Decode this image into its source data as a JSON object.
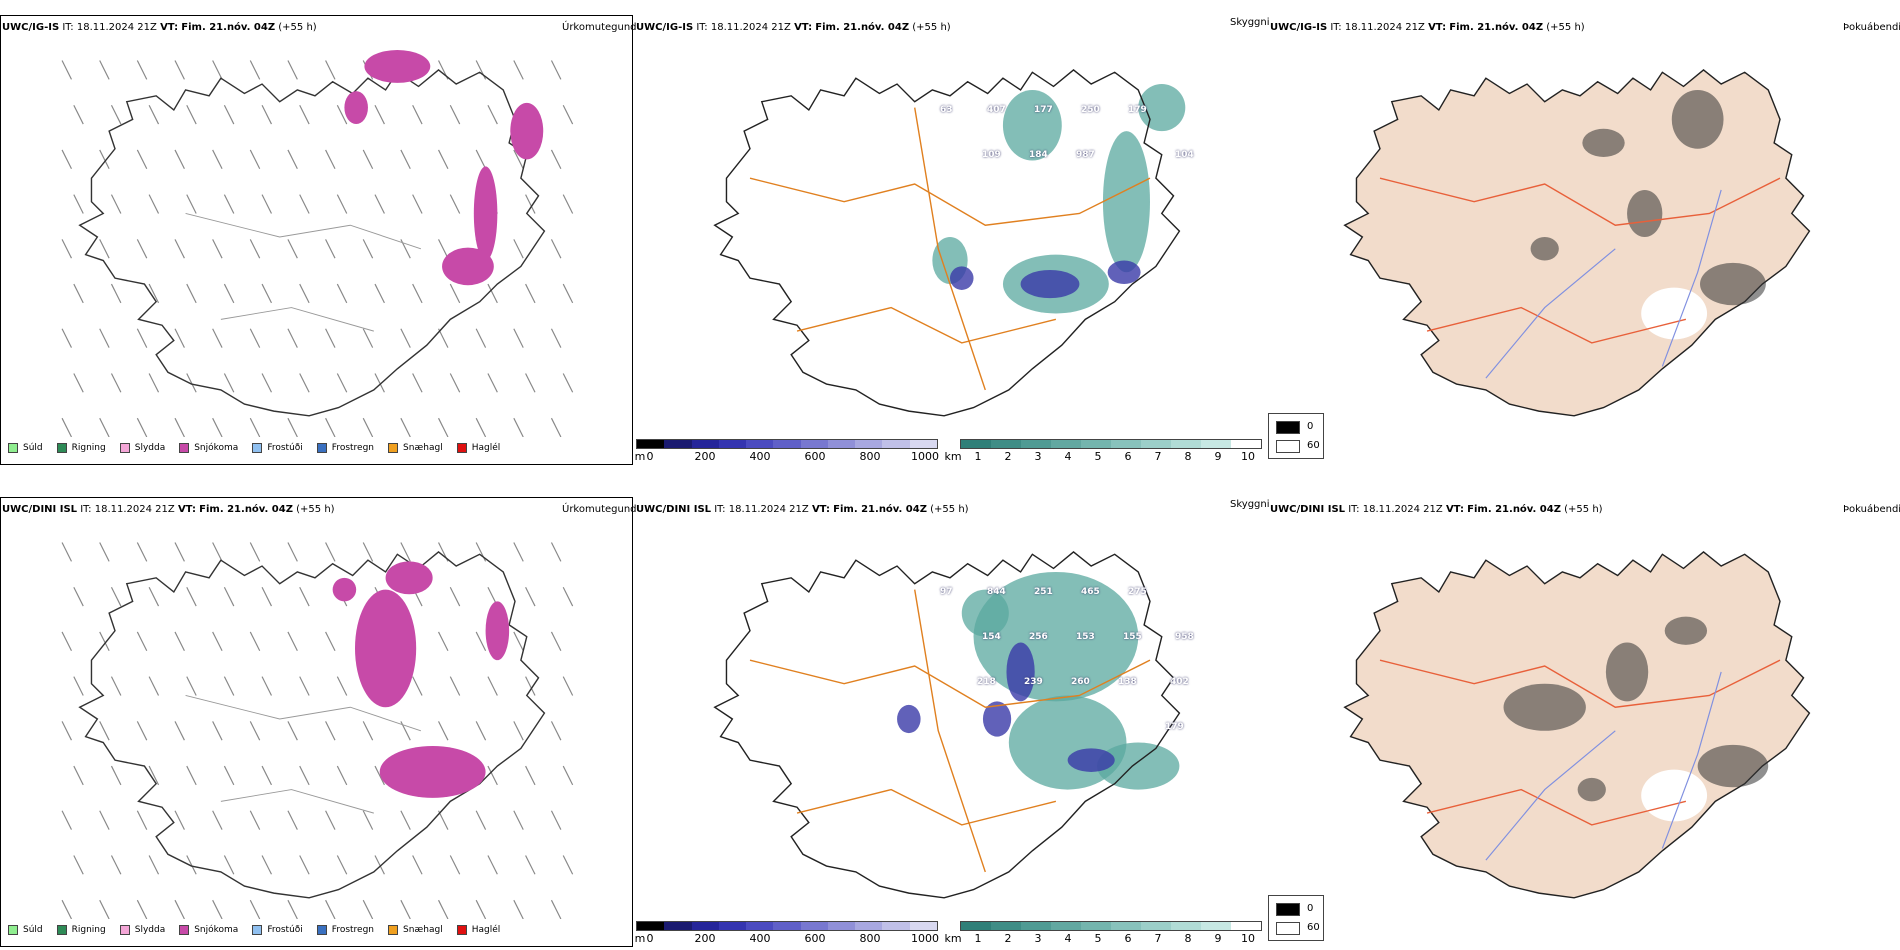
{
  "rows": [
    {
      "model": "UWC/IG-IS",
      "it_label": "IT:",
      "it_value": "18.11.2024 21Z",
      "vt_label": "VT:",
      "vt_value": "Fim. 21.nóv. 04Z",
      "lead": "(+55 h)",
      "panels": {
        "precip": "Úrkomutegund",
        "cloud": "Skyggni",
        "fog": "Þokuábendi"
      },
      "cloud_labels": [
        "63",
        "407",
        "177",
        "250",
        "179",
        "104",
        "109",
        "184",
        "987"
      ]
    },
    {
      "model": "UWC/DINI ISL",
      "it_label": "IT:",
      "it_value": "18.11.2024 21Z",
      "vt_label": "VT:",
      "vt_value": "Fim. 21.nóv. 04Z",
      "lead": "(+55 h)",
      "panels": {
        "precip": "Úrkomutegund",
        "cloud": "Skyggni",
        "fog": "Þokuábendi"
      },
      "cloud_labels": [
        "97",
        "844",
        "251",
        "465",
        "275",
        "958",
        "154",
        "256",
        "153",
        "155",
        "402",
        "218",
        "239",
        "260",
        "138",
        "179"
      ]
    }
  ],
  "precip_legend": [
    {
      "label": "Súld",
      "color": "#90ee90"
    },
    {
      "label": "Rigning",
      "color": "#2e8b57"
    },
    {
      "label": "Slydda",
      "color": "#f4a6d7"
    },
    {
      "label": "Snjókoma",
      "color": "#c74aa8"
    },
    {
      "label": "Frostúði",
      "color": "#90c0f0"
    },
    {
      "label": "Frostregn",
      "color": "#3a70c0"
    },
    {
      "label": "Snæhagl",
      "color": "#f0a020"
    },
    {
      "label": "Haglél",
      "color": "#e01010"
    }
  ],
  "height_bar": {
    "unit": "m",
    "ticks": [
      "0",
      "200",
      "400",
      "600",
      "800",
      "1000"
    ],
    "colors": [
      "#000000",
      "#1a1a70",
      "#25259a",
      "#3535b0",
      "#4b4bc0",
      "#6060c8",
      "#7878d0",
      "#9090d8",
      "#a8a8e0",
      "#c0c0e8",
      "#d8d8f0"
    ]
  },
  "vis_bar": {
    "unit": "km",
    "ticks": [
      "1",
      "2",
      "3",
      "4",
      "5",
      "6",
      "7",
      "8",
      "9",
      "10"
    ],
    "colors": [
      "#2f7f78",
      "#3f8d86",
      "#509b94",
      "#62a8a1",
      "#74b5ae",
      "#88c2bc",
      "#9ccfc9",
      "#b1dcd6",
      "#c7e8e3",
      "#ffffff"
    ]
  },
  "fog_legend": {
    "dark_value": "0",
    "light_value": "60",
    "dark_color": "#000000",
    "light_color": "#ffffff"
  },
  "colors": {
    "snow": "#c74aa8",
    "road": "#e08020",
    "cloud_teal": "#5aa89f",
    "cloud_blue": "#3a3aa8",
    "fog_land": "#f2dccb",
    "fog_road": "#e8603a",
    "river": "#8090e0"
  }
}
